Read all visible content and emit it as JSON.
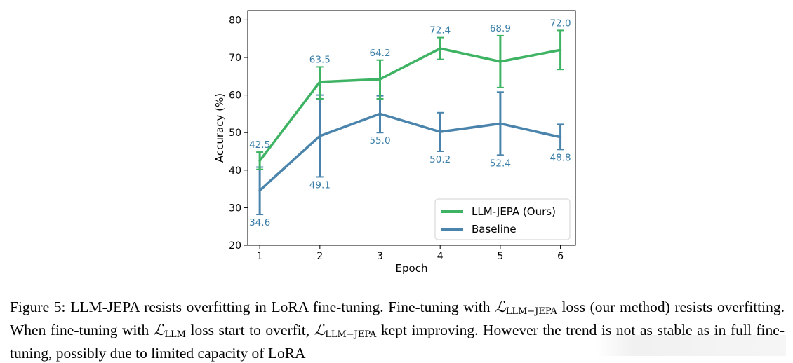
{
  "chart_data": {
    "type": "line",
    "title": "",
    "xlabel": "Epoch",
    "ylabel": "Accuracy (%)",
    "x": [
      1,
      2,
      3,
      4,
      5,
      6
    ],
    "xticks": [
      "1",
      "2",
      "3",
      "4",
      "5",
      "6"
    ],
    "yticks": [
      "20",
      "30",
      "40",
      "50",
      "60",
      "70",
      "80"
    ],
    "xlim": [
      0.8,
      6.25
    ],
    "ylim": [
      20,
      82.5
    ],
    "grid": false,
    "legend_position": "bottom-right",
    "series": [
      {
        "name": "LLM-JEPA (Ours)",
        "color": "#3fb364",
        "label_color": "#3a7ea8",
        "values": [
          42.5,
          63.5,
          64.2,
          72.4,
          68.9,
          72.0
        ],
        "labels": [
          "42.5",
          "63.5",
          "64.2",
          "72.4",
          "68.9",
          "72.0"
        ],
        "err_low": [
          40.2,
          59.0,
          59.0,
          69.5,
          62.0,
          66.8
        ],
        "err_high": [
          44.8,
          67.5,
          69.3,
          75.3,
          75.8,
          77.2
        ],
        "label_side": "above"
      },
      {
        "name": "Baseline",
        "color": "#4a84ac",
        "label_color": "#3a7ea8",
        "values": [
          34.6,
          49.1,
          55.0,
          50.2,
          52.4,
          48.8
        ],
        "labels": [
          "34.6",
          "49.1",
          "55.0",
          "50.2",
          "52.4",
          "48.8"
        ],
        "err_low": [
          28.2,
          38.2,
          50.0,
          45.0,
          44.0,
          45.5
        ],
        "err_high": [
          40.8,
          60.0,
          59.8,
          55.3,
          60.8,
          52.2
        ],
        "label_side": "below"
      }
    ]
  },
  "caption": {
    "prefix": "Figure 5: LLM-JEPA resists overfitting in LoRA fine-tuning. Fine-tuning with ",
    "math1": "ℒ",
    "sub1": "LLM−JEPA",
    "middle1": " loss (our method) resists overfitting. When fine-tuning with ",
    "math2": "ℒ",
    "sub2": "LLM",
    "middle2": " loss start to overfit, ",
    "math3": "ℒ",
    "sub3": "LLM−JEPA",
    "suffix": " kept improving. However the trend is not as stable as in full fine-tuning, possibly due to limited capacity of LoRA"
  }
}
